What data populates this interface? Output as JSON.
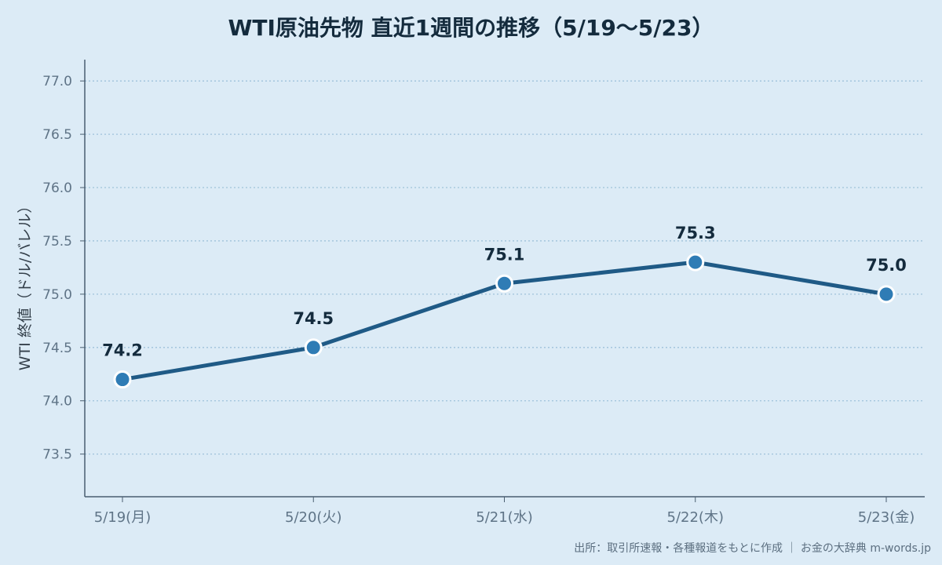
{
  "chart_data": {
    "type": "line",
    "title": "WTI原油先物 直近1週間の推移（5/19〜5/23）",
    "xlabel": "",
    "ylabel": "WTI 終値（ドル/バレル）",
    "categories": [
      "5/19(月)",
      "5/20(火)",
      "5/21(水)",
      "5/22(木)",
      "5/23(金)"
    ],
    "series": [
      {
        "values": [
          74.2,
          74.5,
          75.1,
          75.3,
          75.0
        ]
      }
    ],
    "data_labels": [
      "74.2",
      "74.5",
      "75.1",
      "75.3",
      "75.0"
    ],
    "ylim": [
      73.1,
      77.2
    ],
    "yticks": [
      73.5,
      74.0,
      74.5,
      75.0,
      75.5,
      76.0,
      76.5,
      77.0
    ],
    "ytick_labels": [
      "73.5",
      "74.0",
      "74.5",
      "75.0",
      "75.5",
      "76.0",
      "76.5",
      "77.0"
    ],
    "grid": true,
    "grid_axis": "y",
    "grid_style": "dotted",
    "legend": "none"
  },
  "colors": {
    "background": "#dcebf6",
    "line": "#1f5a86",
    "marker_fill": "#2f7cb5",
    "marker_edge": "#ffffff",
    "grid": "#9fc2da",
    "axis": "#4a5e70"
  },
  "footer": {
    "source": "出所：取引所速報・各種報道をもとに作成 ｜ お金の大辞典 m-words.jp"
  }
}
